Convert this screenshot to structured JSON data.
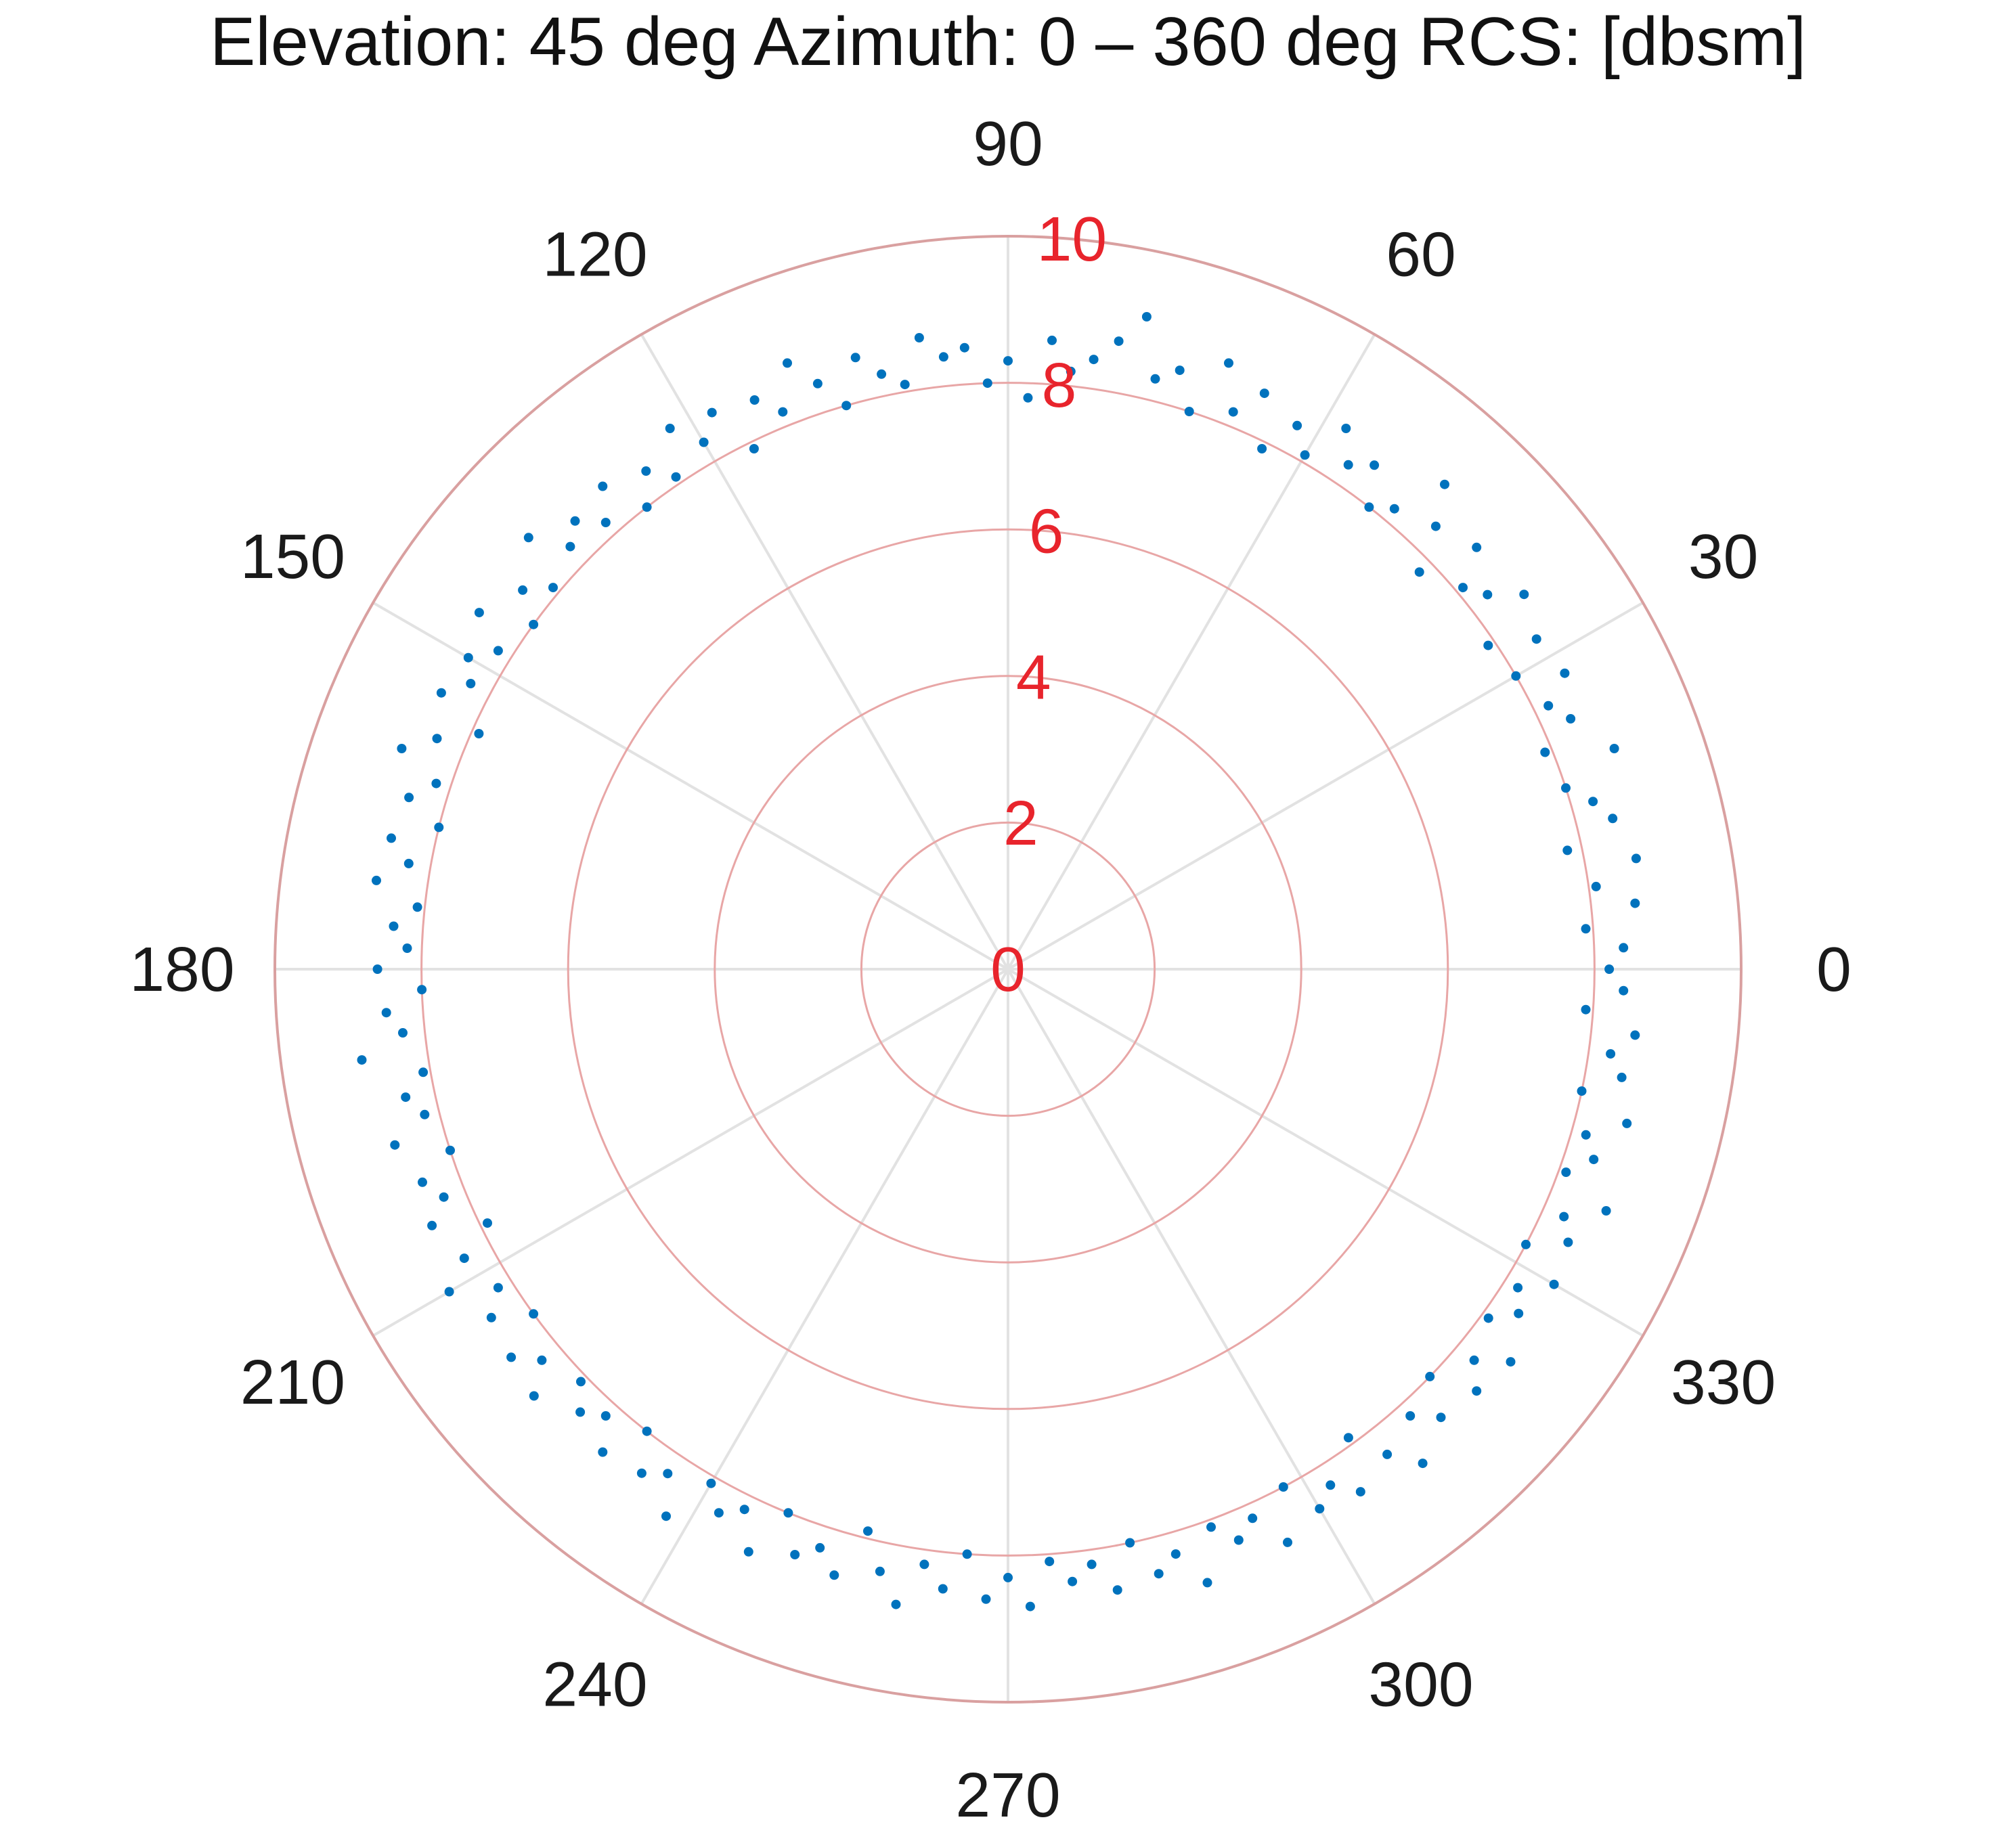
{
  "chart_data": {
    "type": "scatter",
    "coordinate_system": "polar",
    "title": "Elevation: 45 deg Azimuth: 0 – 360 deg RCS: [dbsm]",
    "theta_unit": "deg",
    "theta_ticks": [
      0,
      30,
      60,
      90,
      120,
      150,
      180,
      210,
      240,
      270,
      300,
      330
    ],
    "theta_tick_labels": [
      "0",
      "30",
      "60",
      "90",
      "120",
      "150",
      "180",
      "210",
      "240",
      "270",
      "300",
      "330"
    ],
    "theta_direction": "counterclockwise",
    "theta_zero_location": "right",
    "r_ticks": [
      0,
      2,
      4,
      6,
      8,
      10
    ],
    "r_tick_labels": [
      "0",
      "2",
      "4",
      "6",
      "8",
      "10"
    ],
    "r_tick_label_angle_deg": 85,
    "rlim": [
      0,
      10
    ],
    "grid": true,
    "colors": {
      "points": "#0072BD",
      "radial_labels": "#E8242C",
      "rings": "#E8A6A6",
      "outer_ring": "#D9A0A0",
      "spokes": "#E2E2E2"
    },
    "series": [
      {
        "name": "RCS",
        "marker": "dot",
        "theta": [
          0,
          2,
          4,
          6,
          8,
          10,
          12,
          14,
          16,
          18,
          20,
          22,
          24,
          26,
          28,
          30,
          32,
          34,
          36,
          38,
          40,
          42,
          44,
          46,
          48,
          50,
          52,
          54,
          56,
          58,
          60,
          62,
          64,
          66,
          68,
          70,
          72,
          74,
          76,
          78,
          80,
          82,
          84,
          86,
          88,
          90,
          92,
          94,
          96,
          98,
          100,
          102,
          104,
          106,
          108,
          110,
          112,
          114,
          116,
          118,
          120,
          122,
          124,
          126,
          128,
          130,
          132,
          134,
          136,
          138,
          140,
          142,
          144,
          146,
          148,
          150,
          152,
          154,
          156,
          158,
          160,
          162,
          164,
          166,
          168,
          170,
          172,
          174,
          176,
          178,
          180,
          182,
          184,
          186,
          188,
          190,
          192,
          194,
          196,
          198,
          200,
          202,
          204,
          206,
          208,
          210,
          212,
          214,
          216,
          218,
          220,
          222,
          224,
          226,
          228,
          230,
          232,
          234,
          236,
          238,
          240,
          242,
          244,
          246,
          248,
          250,
          252,
          254,
          256,
          258,
          260,
          262,
          264,
          266,
          268,
          270,
          272,
          274,
          276,
          278,
          280,
          282,
          284,
          286,
          288,
          290,
          292,
          294,
          296,
          298,
          300,
          302,
          304,
          306,
          308,
          310,
          312,
          314,
          316,
          318,
          320,
          322,
          324,
          326,
          328,
          330,
          332,
          334,
          336,
          338,
          340,
          342,
          344,
          346,
          348,
          350,
          352,
          354,
          356,
          358
        ],
        "r": [
          8.2,
          8.4,
          7.9,
          8.6,
          8.1,
          8.7,
          7.8,
          8.5,
          8.3,
          8.0,
          8.8,
          7.9,
          8.4,
          8.2,
          8.6,
          8.0,
          8.5,
          7.9,
          8.7,
          8.3,
          8.1,
          8.6,
          7.8,
          8.4,
          8.9,
          8.2,
          8.0,
          8.5,
          8.3,
          8.7,
          8.1,
          8.4,
          7.9,
          8.6,
          8.2,
          8.8,
          8.0,
          8.5,
          8.3,
          9.1,
          8.7,
          8.4,
          8.2,
          8.6,
          7.8,
          8.3,
          8.0,
          8.5,
          8.4,
          8.7,
          8.1,
          8.3,
          8.6,
          8.0,
          8.4,
          8.8,
          8.2,
          8.5,
          7.9,
          8.6,
          8.3,
          8.7,
          8.1,
          8.4,
          8.0,
          8.6,
          8.2,
          8.5,
          8.3,
          8.8,
          8.1,
          8.4,
          8.0,
          8.7,
          8.2,
          8.5,
          8.3,
          8.6,
          7.9,
          8.4,
          8.8,
          8.2,
          8.5,
          8.0,
          8.6,
          8.3,
          8.7,
          8.1,
          8.4,
          8.2,
          8.6,
          8.0,
          8.5,
          8.3,
          8.9,
          8.1,
          8.4,
          8.2,
          8.7,
          8.0,
          8.5,
          8.3,
          8.6,
          7.9,
          8.4,
          8.8,
          8.2,
          8.5,
          8.0,
          8.6,
          8.3,
          8.7,
          8.1,
          8.4,
          8.2,
          8.6,
          8.0,
          8.5,
          8.3,
          8.8,
          8.1,
          8.4,
          8.2,
          8.7,
          8.0,
          8.5,
          8.3,
          8.6,
          7.9,
          8.4,
          8.8,
          8.2,
          8.5,
          8.0,
          8.6,
          8.3,
          8.7,
          8.1,
          8.4,
          8.2,
          8.6,
          8.0,
          8.5,
          8.3,
          8.8,
          8.1,
          8.4,
          8.2,
          8.7,
          8.0,
          8.5,
          8.3,
          8.6,
          7.9,
          8.4,
          8.8,
          8.2,
          8.5,
          8.0,
          8.6,
          8.3,
          8.7,
          8.1,
          8.4,
          8.2,
          8.6,
          8.0,
          8.5,
          8.3,
          8.8,
          8.1,
          8.4,
          8.2,
          8.7,
          8.0,
          8.5,
          8.3,
          8.6,
          7.9,
          8.4
        ]
      }
    ]
  }
}
